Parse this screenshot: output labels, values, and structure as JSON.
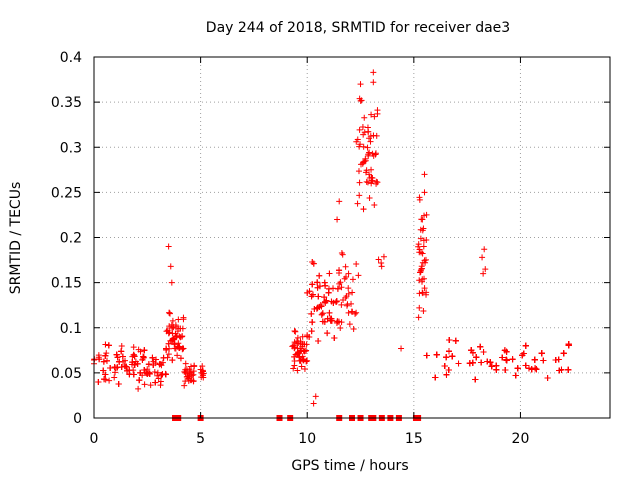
{
  "chart_data": {
    "type": "scatter",
    "title": "Day 244 of 2018, SRMTID for receiver dae3",
    "xlabel": "GPS time / hours",
    "ylabel": "SRMTID / TECUs",
    "xlim": [
      0,
      24.2
    ],
    "ylim": [
      0,
      0.4
    ],
    "grid": true,
    "marker": "+",
    "color": "#ff0000",
    "x_ticks": [
      {
        "value": 0,
        "label": "0"
      },
      {
        "value": 5,
        "label": "5"
      },
      {
        "value": 10,
        "label": "10"
      },
      {
        "value": 15,
        "label": "15"
      },
      {
        "value": 20,
        "label": "20"
      }
    ],
    "y_ticks": [
      {
        "value": 0,
        "label": "0"
      },
      {
        "value": 0.05,
        "label": "0.05"
      },
      {
        "value": 0.1,
        "label": "0.1"
      },
      {
        "value": 0.15,
        "label": "0.15"
      },
      {
        "value": 0.2,
        "label": "0.2"
      },
      {
        "value": 0.25,
        "label": "0.25"
      },
      {
        "value": 0.3,
        "label": "0.3"
      },
      {
        "value": 0.35,
        "label": "0.35"
      },
      {
        "value": 0.4,
        "label": "0.4"
      }
    ],
    "series": [
      {
        "name": "SRMTID",
        "segments": [
          {
            "x_start": 0.0,
            "x_end": 3.4,
            "base": 0.055,
            "spread": 0.025,
            "n": 260
          },
          {
            "x_start": 3.4,
            "x_end": 4.2,
            "base": 0.085,
            "spread": 0.03,
            "n": 70
          },
          {
            "x_start": 4.2,
            "x_end": 4.7,
            "base": 0.045,
            "spread": 0.015,
            "n": 30
          },
          {
            "x_start": 5.0,
            "x_end": 5.2,
            "base": 0.05,
            "spread": 0.01,
            "n": 10
          },
          {
            "x_start": 9.3,
            "x_end": 10.0,
            "base": 0.07,
            "spread": 0.025,
            "n": 60
          },
          {
            "x_start": 10.0,
            "x_end": 11.5,
            "base": 0.12,
            "spread": 0.05,
            "n": 140
          },
          {
            "x_start": 11.5,
            "x_end": 12.3,
            "base": 0.13,
            "spread": 0.05,
            "n": 30
          },
          {
            "x_start": 12.3,
            "x_end": 13.3,
            "base": 0.28,
            "spread": 0.07,
            "n": 60
          },
          {
            "x_start": 13.3,
            "x_end": 13.6,
            "base": 0.17,
            "spread": 0.01,
            "n": 4
          },
          {
            "x_start": 15.2,
            "x_end": 15.6,
            "base": 0.16,
            "spread": 0.08,
            "n": 40
          },
          {
            "x_start": 15.6,
            "x_end": 22.3,
            "base": 0.06,
            "spread": 0.025,
            "n": 520
          }
        ],
        "peaks": [
          {
            "x": 3.5,
            "y": 0.19
          },
          {
            "x": 3.6,
            "y": 0.168
          },
          {
            "x": 3.65,
            "y": 0.15
          },
          {
            "x": 11.5,
            "y": 0.24
          },
          {
            "x": 11.4,
            "y": 0.22
          },
          {
            "x": 12.5,
            "y": 0.37
          },
          {
            "x": 12.55,
            "y": 0.352
          },
          {
            "x": 13.1,
            "y": 0.383
          },
          {
            "x": 13.1,
            "y": 0.372
          },
          {
            "x": 13.15,
            "y": 0.334
          },
          {
            "x": 12.9,
            "y": 0.31
          },
          {
            "x": 12.4,
            "y": 0.158
          },
          {
            "x": 14.4,
            "y": 0.077
          },
          {
            "x": 15.5,
            "y": 0.27
          },
          {
            "x": 15.5,
            "y": 0.25
          },
          {
            "x": 15.4,
            "y": 0.22
          },
          {
            "x": 15.45,
            "y": 0.21
          },
          {
            "x": 18.3,
            "y": 0.187
          },
          {
            "x": 18.2,
            "y": 0.178
          },
          {
            "x": 18.35,
            "y": 0.165
          },
          {
            "x": 18.25,
            "y": 0.16
          },
          {
            "x": 10.3,
            "y": 0.016
          },
          {
            "x": 10.4,
            "y": 0.024
          },
          {
            "x": 12.9,
            "y": 0.27
          },
          {
            "x": 13.0,
            "y": 0.26
          }
        ],
        "zero_values_x": [
          3.8,
          3.95,
          5.0,
          8.7,
          9.2,
          11.5,
          12.1,
          12.5,
          13.0,
          13.1,
          13.5,
          13.9,
          14.3,
          15.1,
          15.2
        ]
      }
    ]
  }
}
